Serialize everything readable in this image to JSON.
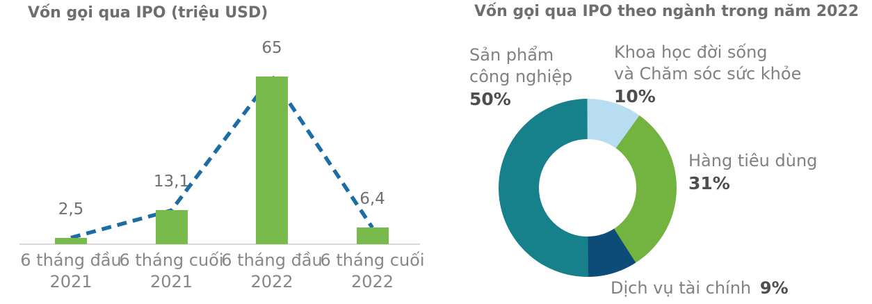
{
  "chart_data": [
    {
      "type": "bar",
      "overlay": "dashed-line-through-bar-tops",
      "title": "Vốn gọi qua IPO (triệu USD)",
      "categories": [
        "6 tháng đầu 2021",
        "6 tháng cuối 2021",
        "6 tháng đầu 2022",
        "6 tháng cuối 2022"
      ],
      "category_lines": [
        [
          "6 tháng đầu",
          "2021"
        ],
        [
          "6 tháng cuối",
          "2021"
        ],
        [
          "6 tháng đầu",
          "2022"
        ],
        [
          "6 tháng cuối",
          "2022"
        ]
      ],
      "values": [
        2.5,
        13.1,
        65,
        6.4
      ],
      "value_labels": [
        "2,5",
        "13,1",
        "65",
        "6,4"
      ],
      "ylim": [
        0,
        70
      ],
      "grid": false,
      "legend": "none",
      "bar_color": "#78ba4c",
      "line_color": "#1c6da4",
      "axis_color": "#d9d9d9"
    },
    {
      "type": "pie",
      "donut": true,
      "title": "Vốn gọi qua IPO theo ngành trong năm 2022",
      "direction": "clockwise",
      "start_angle": "12-oclock",
      "segments": [
        {
          "label": "Khoa học đời sống và Chăm sóc sức khỏe",
          "pct": 10,
          "color": "#b9ddf0"
        },
        {
          "label": "Hàng tiêu dùng",
          "pct": 31,
          "color": "#72b43f"
        },
        {
          "label": "Dịch vụ tài chính",
          "pct": 9,
          "color": "#0d4c78"
        },
        {
          "label": "Sản phẩm công nghiệp",
          "pct": 50,
          "color": "#16808b"
        }
      ],
      "callouts": [
        {
          "name": "industrial",
          "lines": [
            "Sản phẩm",
            "công nghiệp"
          ],
          "pct": "50%"
        },
        {
          "name": "science",
          "lines": [
            "Khoa học đời sống",
            "và Chăm sóc sức khỏe"
          ],
          "pct": "10%"
        },
        {
          "name": "consumer",
          "lines": [
            "Hàng tiêu dùng"
          ],
          "pct": "31%"
        },
        {
          "name": "finance",
          "lines": [
            "Dịch vụ tài chính"
          ],
          "pct": "9%"
        }
      ]
    }
  ]
}
